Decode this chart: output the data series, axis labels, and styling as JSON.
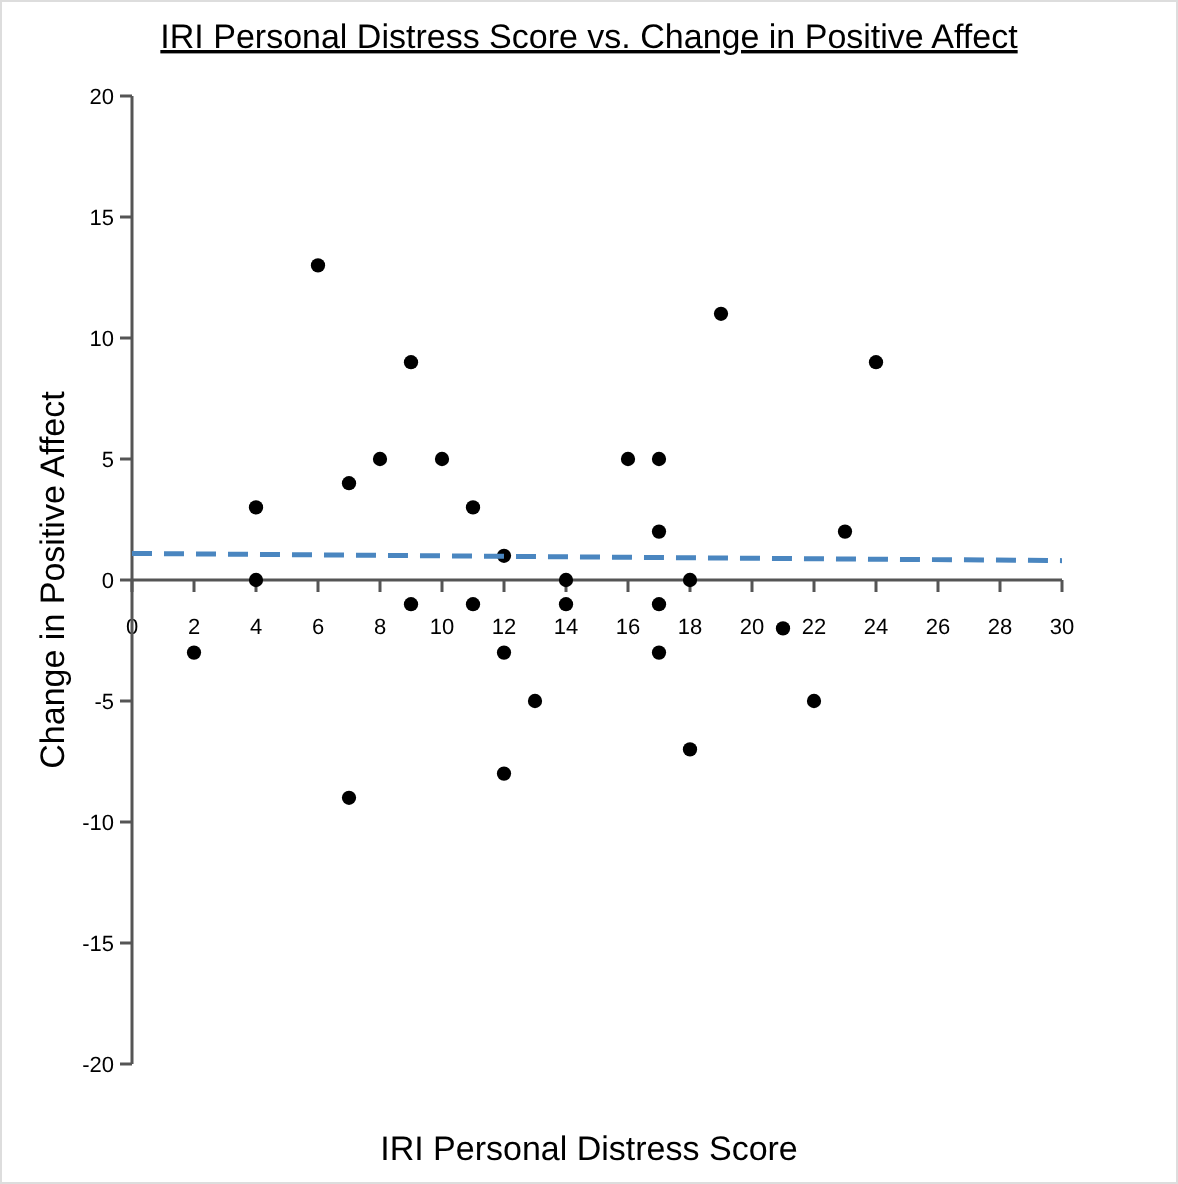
{
  "chart_data": {
    "type": "scatter",
    "title": "IRI Personal Distress Score vs. Change in Positive Affect",
    "xlabel": "IRI Personal Distress Score",
    "ylabel": "Change in Positive Affect",
    "xlim": [
      0,
      30
    ],
    "xticks": [
      0,
      2,
      4,
      6,
      8,
      10,
      12,
      14,
      16,
      18,
      20,
      22,
      24,
      26,
      28,
      30
    ],
    "ylim": [
      -20,
      20
    ],
    "yticks": [
      -20,
      -15,
      -10,
      -5,
      0,
      5,
      10,
      15,
      20
    ],
    "marker": "circle",
    "grid": false,
    "series": [
      {
        "color": "#000000",
        "x": [
          2,
          4,
          4,
          6,
          7,
          7,
          8,
          9,
          9,
          10,
          11,
          11,
          12,
          12,
          12,
          13,
          14,
          14,
          16,
          17,
          17,
          17,
          17,
          18,
          18,
          19,
          21,
          22,
          23,
          24
        ],
        "values": [
          -3,
          3,
          0,
          13,
          4,
          -9,
          5,
          9,
          -1,
          5,
          3,
          -1,
          1,
          -3,
          -8,
          -5,
          0,
          -1,
          5,
          5,
          2,
          -1,
          -3,
          0,
          -7,
          11,
          -2,
          -5,
          2,
          9
        ]
      },
      {
        "type": "line",
        "marker": "none",
        "color": "#4a86c0",
        "line_style": "dashed",
        "x": [
          0,
          30
        ],
        "values": [
          1.1,
          0.8
        ]
      }
    ]
  }
}
